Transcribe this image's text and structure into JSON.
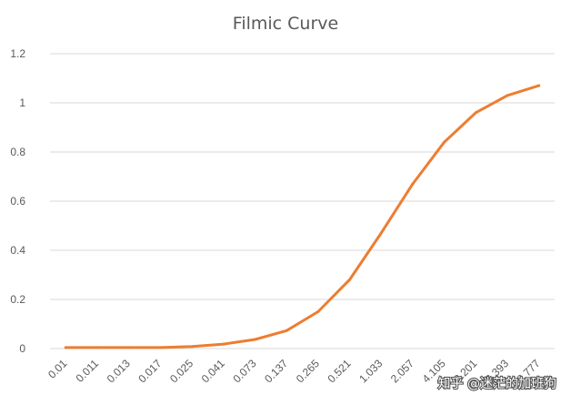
{
  "chart_data": {
    "type": "line",
    "title": "Filmic Curve",
    "xlabel": "",
    "ylabel": "",
    "categories": [
      "0.01",
      "0.011",
      "0.013",
      "0.017",
      "0.025",
      "0.041",
      "0.073",
      "0.137",
      "0.265",
      "0.521",
      "1.033",
      "2.057",
      "4.105",
      "8.201",
      "16.393",
      "32.777"
    ],
    "category_labels": [
      "0.01",
      "0.011",
      "0.013",
      "0.017",
      "0.025",
      "0.041",
      "0.073",
      "0.137",
      "0.265",
      "0.521",
      "1.033",
      "2.057",
      "4.105",
      "8.201",
      "16.393",
      "32.777"
    ],
    "series": [
      {
        "values": [
          0.004,
          0.004,
          0.004,
          0.004,
          0.008,
          0.018,
          0.037,
          0.073,
          0.15,
          0.28,
          0.47,
          0.67,
          0.84,
          0.96,
          1.03,
          1.07
        ]
      }
    ],
    "ylim": [
      0,
      1.2
    ],
    "yticks": [
      "0",
      "0.2",
      "0.4",
      "0.6",
      "0.8",
      "1",
      "1.2"
    ],
    "ytick_values": [
      0,
      0.2,
      0.4,
      0.6,
      0.8,
      1,
      1.2
    ],
    "grid": true,
    "legend": "none",
    "line_color": "#ed7d31"
  },
  "watermark": {
    "text": "知乎 @迷茫的加班狗"
  }
}
